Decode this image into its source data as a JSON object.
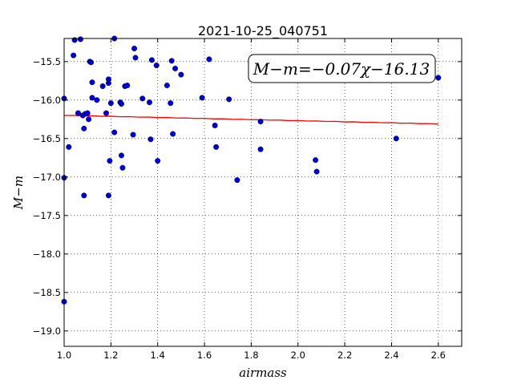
{
  "chart_data": {
    "type": "scatter",
    "title": "2021-10-25_040751",
    "xlabel": "airmass",
    "ylabel": "M−m",
    "xlim": [
      1.0,
      2.7
    ],
    "ylim": [
      -19.2,
      -15.2
    ],
    "xticks": [
      1.0,
      1.2,
      1.4,
      1.6,
      1.8,
      2.0,
      2.2,
      2.4,
      2.6
    ],
    "xtick_labels": [
      "1.0",
      "1.2",
      "1.4",
      "1.6",
      "1.8",
      "2.0",
      "2.2",
      "2.4",
      "2.6"
    ],
    "yticks": [
      -15.5,
      -16.0,
      -16.5,
      -17.0,
      -17.5,
      -18.0,
      -18.5,
      -19.0
    ],
    "ytick_labels": [
      "−15.5",
      "−16.0",
      "−16.5",
      "−17.0",
      "−17.5",
      "−18.0",
      "−18.5",
      "−19.0"
    ],
    "grid": true,
    "annotation": "M−m=−0.07χ−16.13",
    "annotation_position": "top-right",
    "fit_line": {
      "slope": -0.07,
      "intercept": -16.13,
      "x_range": [
        1.0,
        2.6
      ],
      "color": "#ff0000"
    },
    "marker_color": "#0000cc",
    "points": [
      {
        "x": 1.0,
        "y": -15.98
      },
      {
        "x": 1.0,
        "y": -17.01
      },
      {
        "x": 1.0,
        "y": -18.62
      },
      {
        "x": 1.02,
        "y": -16.61
      },
      {
        "x": 1.04,
        "y": -15.42
      },
      {
        "x": 1.045,
        "y": -15.22
      },
      {
        "x": 1.06,
        "y": -16.17
      },
      {
        "x": 1.07,
        "y": -15.21
      },
      {
        "x": 1.08,
        "y": -16.2
      },
      {
        "x": 1.085,
        "y": -16.37
      },
      {
        "x": 1.085,
        "y": -17.24
      },
      {
        "x": 1.09,
        "y": -16.18
      },
      {
        "x": 1.1,
        "y": -16.17
      },
      {
        "x": 1.105,
        "y": -16.25
      },
      {
        "x": 1.11,
        "y": -15.5
      },
      {
        "x": 1.115,
        "y": -15.51
      },
      {
        "x": 1.12,
        "y": -15.97
      },
      {
        "x": 1.12,
        "y": -15.77
      },
      {
        "x": 1.14,
        "y": -16.0
      },
      {
        "x": 1.165,
        "y": -15.82
      },
      {
        "x": 1.18,
        "y": -16.17
      },
      {
        "x": 1.19,
        "y": -15.73
      },
      {
        "x": 1.19,
        "y": -15.78
      },
      {
        "x": 1.19,
        "y": -17.24
      },
      {
        "x": 1.195,
        "y": -16.79
      },
      {
        "x": 1.2,
        "y": -16.04
      },
      {
        "x": 1.215,
        "y": -16.42
      },
      {
        "x": 1.215,
        "y": -15.2
      },
      {
        "x": 1.24,
        "y": -16.03
      },
      {
        "x": 1.245,
        "y": -16.05
      },
      {
        "x": 1.245,
        "y": -16.72
      },
      {
        "x": 1.25,
        "y": -16.88
      },
      {
        "x": 1.26,
        "y": -15.82
      },
      {
        "x": 1.27,
        "y": -15.81
      },
      {
        "x": 1.295,
        "y": -16.45
      },
      {
        "x": 1.3,
        "y": -15.33
      },
      {
        "x": 1.305,
        "y": -15.45
      },
      {
        "x": 1.335,
        "y": -15.98
      },
      {
        "x": 1.365,
        "y": -16.03
      },
      {
        "x": 1.37,
        "y": -16.51
      },
      {
        "x": 1.375,
        "y": -15.48
      },
      {
        "x": 1.395,
        "y": -15.55
      },
      {
        "x": 1.4,
        "y": -16.79
      },
      {
        "x": 1.44,
        "y": -15.81
      },
      {
        "x": 1.455,
        "y": -16.04
      },
      {
        "x": 1.46,
        "y": -15.49
      },
      {
        "x": 1.465,
        "y": -16.44
      },
      {
        "x": 1.475,
        "y": -15.59
      },
      {
        "x": 1.5,
        "y": -15.67
      },
      {
        "x": 1.59,
        "y": -15.97
      },
      {
        "x": 1.62,
        "y": -15.47
      },
      {
        "x": 1.645,
        "y": -16.33
      },
      {
        "x": 1.65,
        "y": -16.61
      },
      {
        "x": 1.705,
        "y": -15.99
      },
      {
        "x": 1.74,
        "y": -17.04
      },
      {
        "x": 1.84,
        "y": -16.28
      },
      {
        "x": 1.84,
        "y": -16.64
      },
      {
        "x": 2.075,
        "y": -16.78
      },
      {
        "x": 2.08,
        "y": -16.93
      },
      {
        "x": 2.42,
        "y": -16.5
      },
      {
        "x": 2.6,
        "y": -15.71
      }
    ]
  }
}
